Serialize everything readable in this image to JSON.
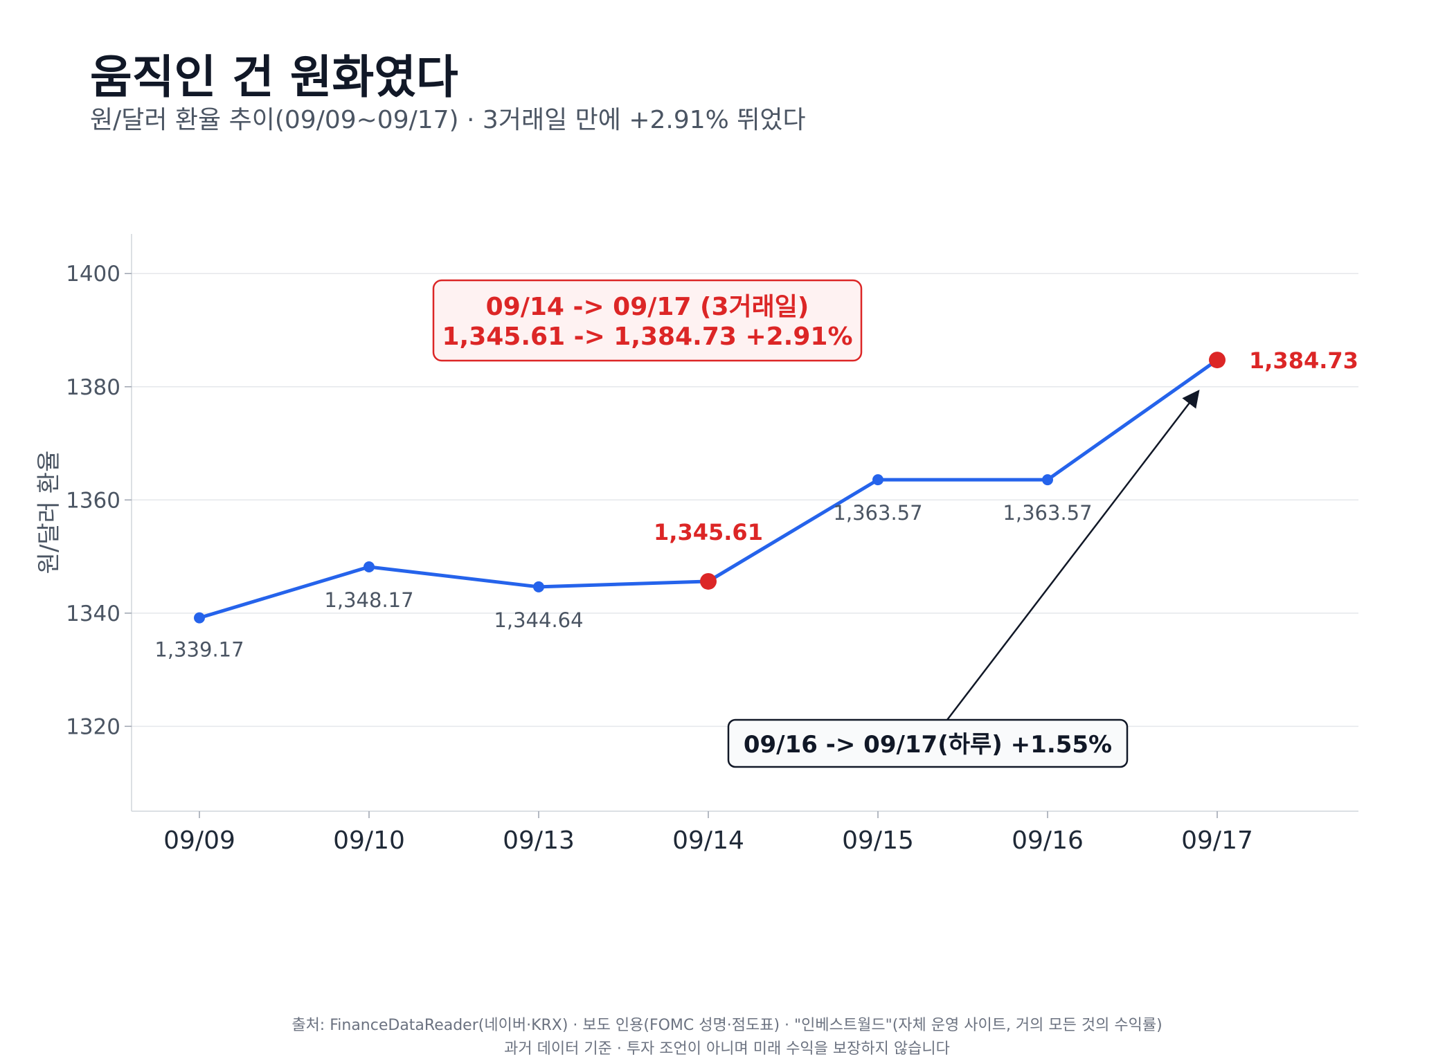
{
  "header": {
    "title": "움직인 건 원화였다",
    "subtitle": "원/달러 환율 추이(09/09~09/17) · 3거래일 만에 +2.91% 뛰었다"
  },
  "chart_data": {
    "type": "line",
    "categories": [
      "09/09",
      "09/10",
      "09/13",
      "09/14",
      "09/15",
      "09/16",
      "09/17"
    ],
    "values": [
      1339.17,
      1348.17,
      1344.64,
      1345.61,
      1363.57,
      1363.57,
      1384.73
    ],
    "point_labels": [
      "1,339.17",
      "1,348.17",
      "1,344.64",
      "1,345.61",
      "1,363.57",
      "1,363.57",
      "1,384.73"
    ],
    "highlight_indices": [
      3,
      6
    ],
    "ylabel": "원/달러 환율",
    "xlabel": "",
    "ylim": [
      1305,
      1407
    ],
    "yticks": [
      1320,
      1340,
      1360,
      1380,
      1400
    ],
    "grid": true,
    "colors": {
      "line": "#2563eb",
      "highlight": "#dc2626",
      "arrow": "#111827"
    },
    "annotations": {
      "box1_line1": "09/14 -> 09/17 (3거래일)",
      "box1_line2": "1,345.61 -> 1,384.73  +2.91%",
      "box2": "09/16 -> 09/17(하루)  +1.55%"
    }
  },
  "footer": {
    "line1": "출처: FinanceDataReader(네이버·KRX) · 보도 인용(FOMC 성명·점도표) · \"인베스트월드\"(자체 운영 사이트, 거의 모든 것의 수익률)",
    "line2": "과거 데이터 기준 · 투자 조언이 아니며 미래 수익을 보장하지 않습니다"
  }
}
